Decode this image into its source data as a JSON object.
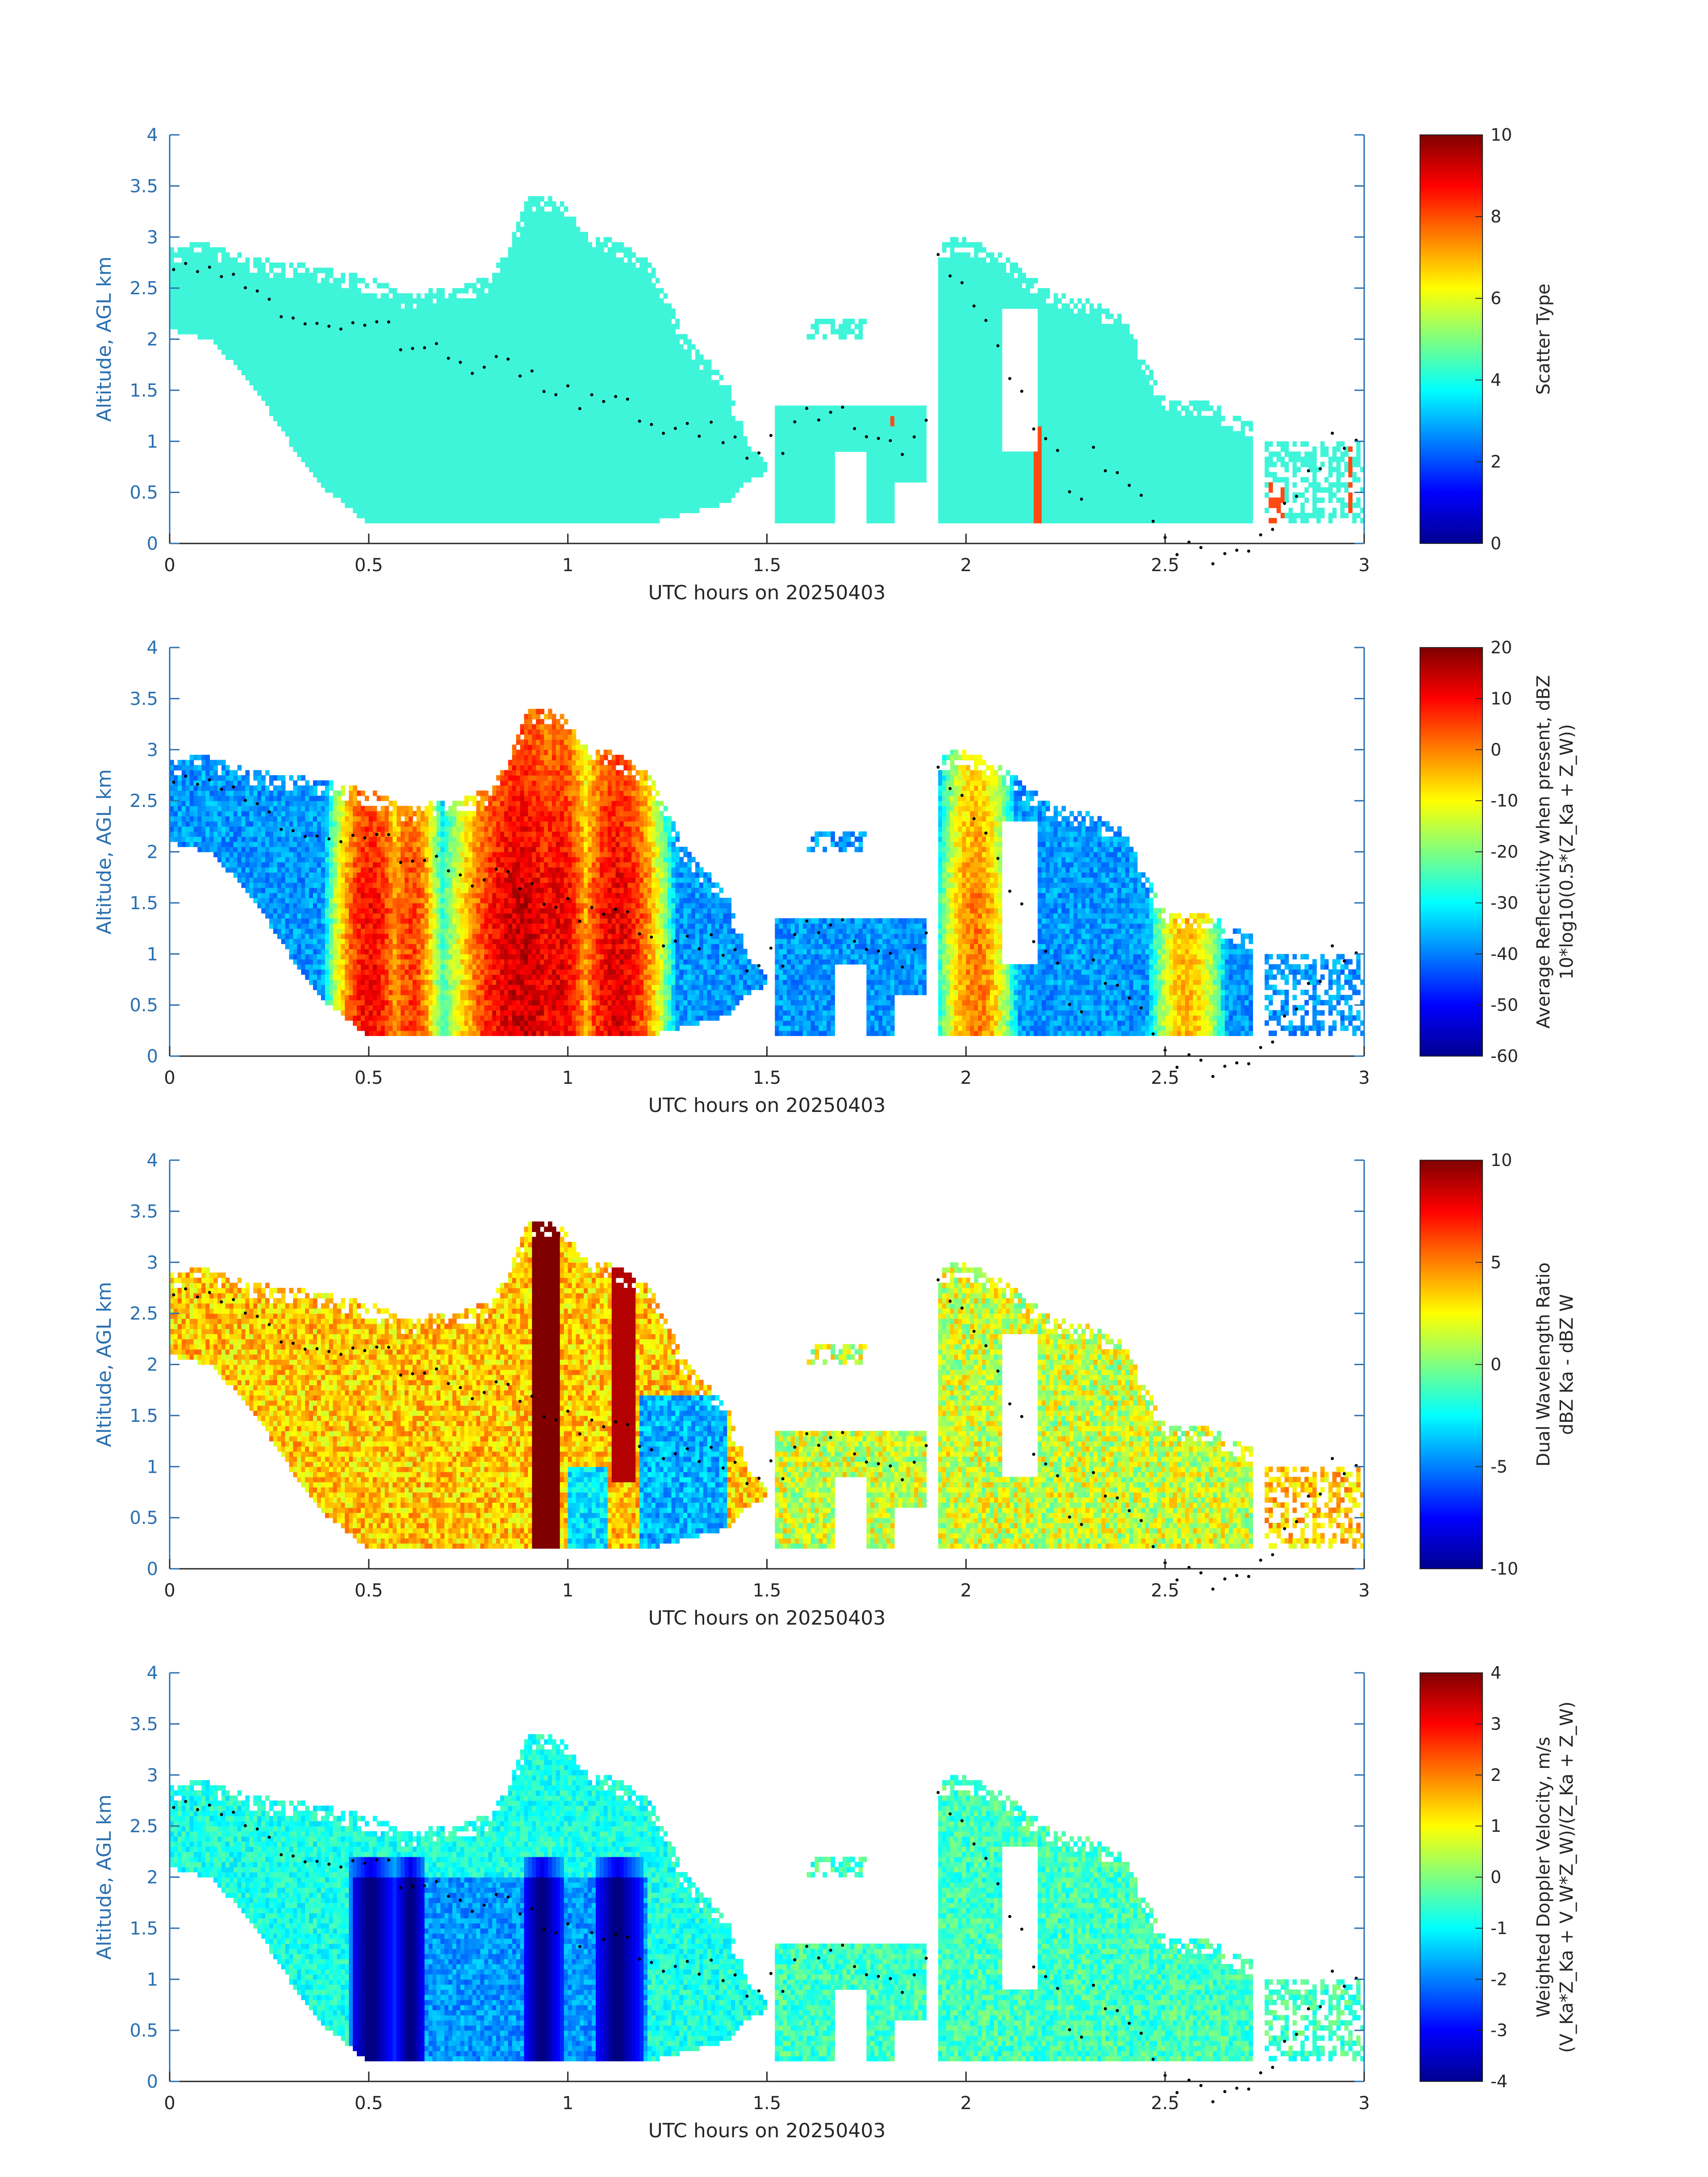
{
  "chart_data": [
    {
      "type": "heatmap",
      "xlabel": "UTC hours on 20250403",
      "ylabel": "Altitude, AGL km",
      "xlim": [
        0,
        3
      ],
      "ylim": [
        0,
        4
      ],
      "x_ticks": [
        "0",
        "0.5",
        "1",
        "1.5",
        "2",
        "2.5",
        "3"
      ],
      "y_ticks": [
        "0",
        "0.5",
        "1",
        "1.5",
        "2",
        "2.5",
        "3",
        "3.5",
        "4"
      ],
      "colorbar": {
        "label_lines": [
          "Scatter Type"
        ],
        "ticks": [
          "0",
          "2",
          "4",
          "6",
          "8",
          "10"
        ],
        "range": [
          0,
          10
        ],
        "colormap": "jet"
      },
      "field": "scatter_type"
    },
    {
      "type": "heatmap",
      "xlabel": "UTC hours on 20250403",
      "ylabel": "Altitude, AGL km",
      "xlim": [
        0,
        3
      ],
      "ylim": [
        0,
        4
      ],
      "x_ticks": [
        "0",
        "0.5",
        "1",
        "1.5",
        "2",
        "2.5",
        "3"
      ],
      "y_ticks": [
        "0",
        "0.5",
        "1",
        "1.5",
        "2",
        "2.5",
        "3",
        "3.5",
        "4"
      ],
      "colorbar": {
        "label_lines": [
          "Average Reflectivity when present, dBZ",
          "10*log10(0.5*(Z_Ka + Z_W))"
        ],
        "ticks": [
          "-60",
          "-50",
          "-40",
          "-30",
          "-20",
          "-10",
          "0",
          "10",
          "20"
        ],
        "range": [
          -60,
          20
        ],
        "colormap": "jet"
      },
      "field": "reflectivity"
    },
    {
      "type": "heatmap",
      "xlabel": "UTC hours on 20250403",
      "ylabel": "Altitude, AGL km",
      "xlim": [
        0,
        3
      ],
      "ylim": [
        0,
        4
      ],
      "x_ticks": [
        "0",
        "0.5",
        "1",
        "1.5",
        "2",
        "2.5",
        "3"
      ],
      "y_ticks": [
        "0",
        "0.5",
        "1",
        "1.5",
        "2",
        "2.5",
        "3",
        "3.5",
        "4"
      ],
      "colorbar": {
        "label_lines": [
          "Dual Wavelength Ratio",
          "dBZ Ka - dBZ W"
        ],
        "ticks": [
          "-10",
          "-5",
          "0",
          "5",
          "10"
        ],
        "range": [
          -10,
          10
        ],
        "colormap": "jet"
      },
      "field": "dwr"
    },
    {
      "type": "heatmap",
      "xlabel": "UTC hours on 20250403",
      "ylabel": "Altitude, AGL km",
      "xlim": [
        0,
        3
      ],
      "ylim": [
        0,
        4
      ],
      "x_ticks": [
        "0",
        "0.5",
        "1",
        "1.5",
        "2",
        "2.5",
        "3"
      ],
      "y_ticks": [
        "0",
        "0.5",
        "1",
        "1.5",
        "2",
        "2.5",
        "3",
        "3.5",
        "4"
      ],
      "colorbar": {
        "label_lines": [
          "Weighted Doppler Velocity, m/s",
          "(V_Ka*Z_Ka + V_W*Z_W)/(Z_Ka + Z_W)"
        ],
        "ticks": [
          "-4",
          "-3",
          "-2",
          "-1",
          "0",
          "1",
          "2",
          "3",
          "4"
        ],
        "range": [
          -4,
          4
        ],
        "colormap": "jet"
      },
      "field": "velocity"
    }
  ],
  "cloud_envelope": {
    "x": [
      0,
      0.1,
      0.2,
      0.3,
      0.4,
      0.5,
      0.6,
      0.7,
      0.8,
      0.85,
      0.9,
      0.95,
      1.0,
      1.05,
      1.1,
      1.2,
      1.3,
      1.4,
      1.45,
      1.5
    ],
    "top_km": [
      2.9,
      2.95,
      2.8,
      2.75,
      2.7,
      2.6,
      2.45,
      2.5,
      2.6,
      2.9,
      3.4,
      3.4,
      3.3,
      3.0,
      3.0,
      2.8,
      2.0,
      1.6,
      1.0,
      0.8
    ],
    "base_km": [
      2.1,
      2.0,
      1.6,
      1.0,
      0.5,
      0.2,
      0.2,
      0.2,
      0.2,
      0.2,
      0.2,
      0.2,
      0.2,
      0.2,
      0.2,
      0.2,
      0.3,
      0.4,
      0.6,
      0.7
    ]
  },
  "cloud_envelope_2": {
    "x": [
      1.93,
      2.0,
      2.1,
      2.2,
      2.3,
      2.4,
      2.5,
      2.6,
      2.7
    ],
    "top_km": [
      2.95,
      3.0,
      2.8,
      2.5,
      2.4,
      2.2,
      1.4,
      1.4,
      1.2
    ],
    "base_km": [
      0.2,
      0.2,
      0.2,
      0.2,
      0.2,
      0.2,
      0.2,
      0.2,
      0.2
    ]
  },
  "colors": {
    "axis": "#2a6fb0",
    "scatter_fill": "#3ff5d9",
    "scatter_rain": "#ff4a14",
    "marker": "#000000"
  }
}
